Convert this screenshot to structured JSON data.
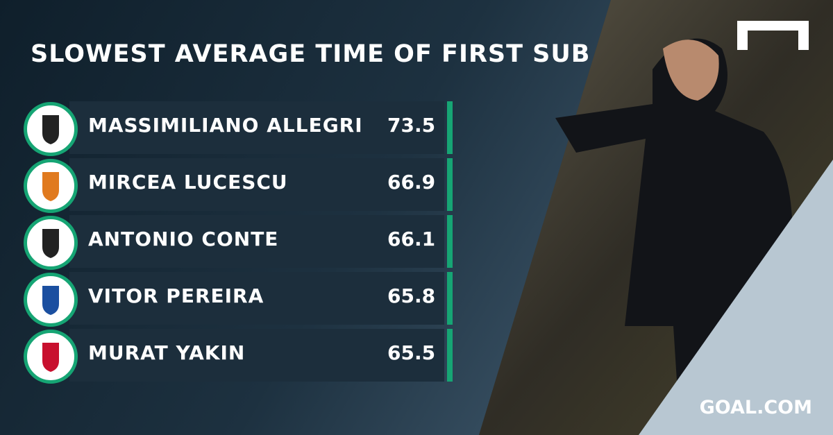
{
  "title": "SLOWEST AVERAGE TIME OF FIRST SUB",
  "rows": [
    {
      "name": "MASSIMILIANO ALLEGRI",
      "value": 73.5
    },
    {
      "name": "MIRCEA LUCESCU",
      "value": 66.9
    },
    {
      "name": "ANTONIO CONTE",
      "value": 66.1
    },
    {
      "name": "VITOR PEREIRA",
      "value": 65.8
    },
    {
      "name": "MURAT YAKIN",
      "value": 65.5
    }
  ],
  "brand": "GOAL.COM"
}
